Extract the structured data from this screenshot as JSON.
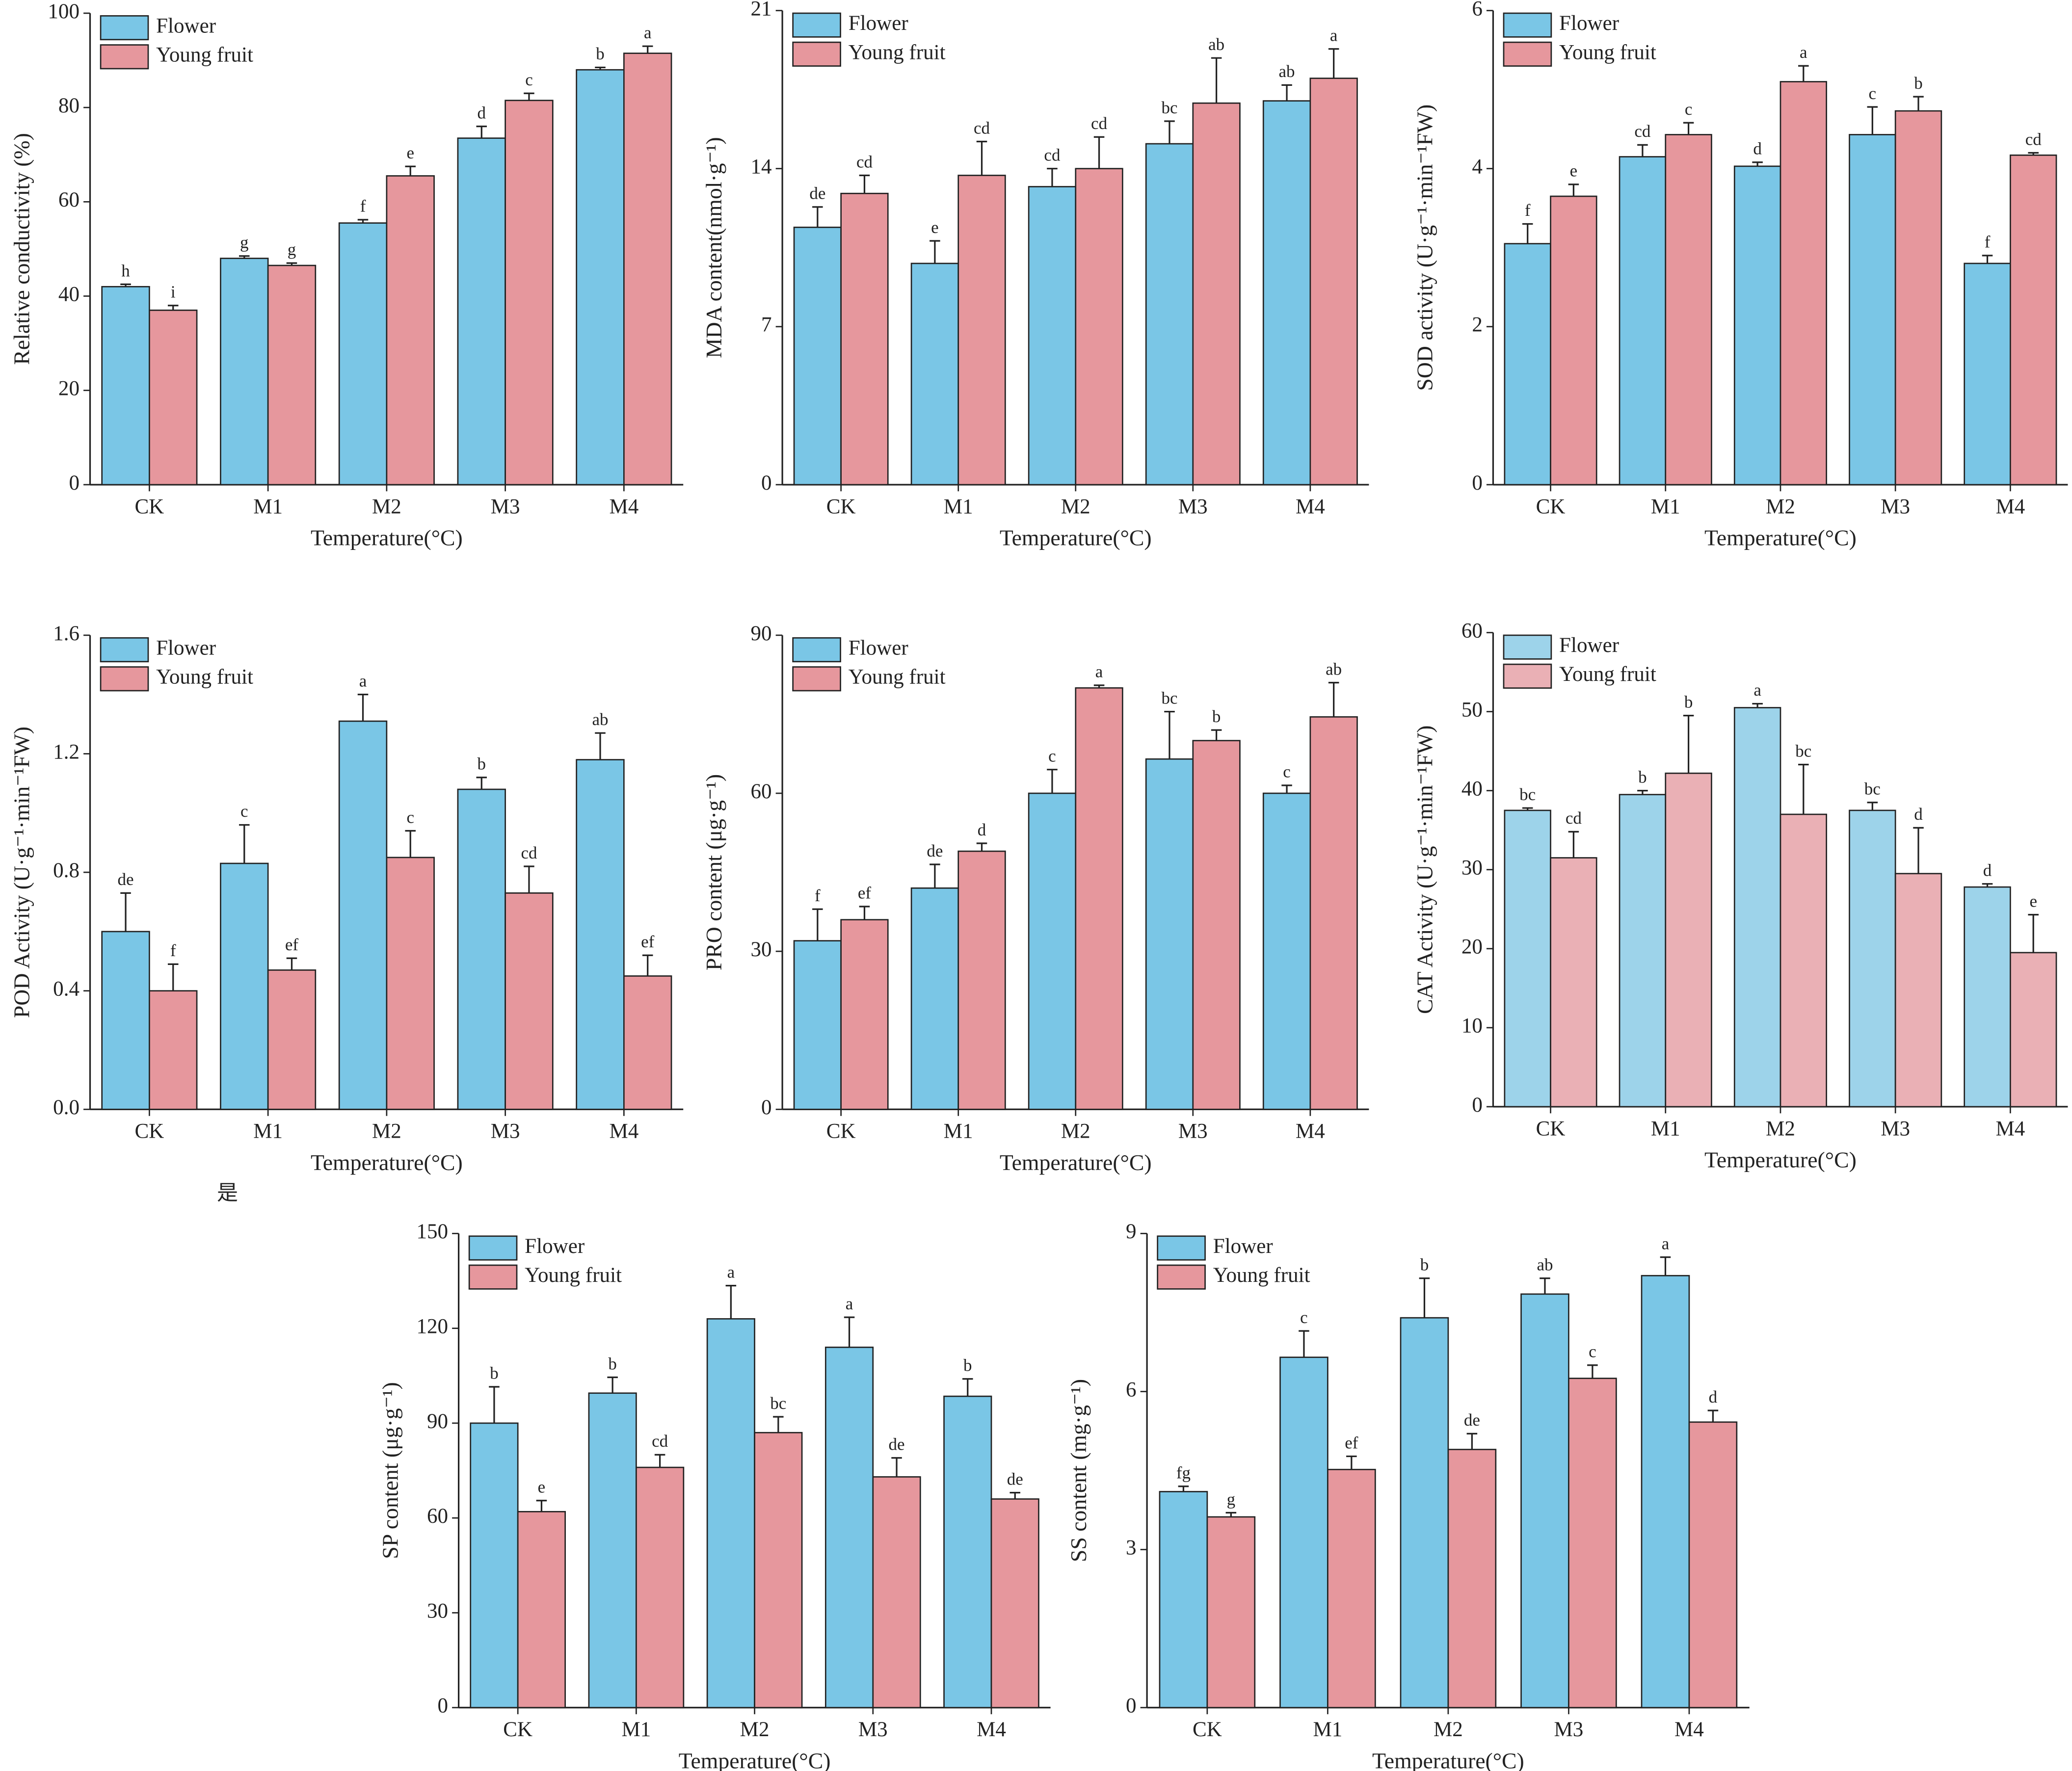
{
  "chart_data": [
    {
      "type": "bar",
      "y_label": "Relative conductivity (%)",
      "x_label": "Temperature(°C)",
      "categories": [
        "CK",
        "M1",
        "M2",
        "M3",
        "M4"
      ],
      "ylim": [
        0,
        100
      ],
      "yticks": [
        0,
        20,
        40,
        60,
        80,
        100
      ],
      "series": [
        {
          "name": "Flower",
          "color": "#7ac6e6",
          "values": [
            42,
            48,
            55.5,
            73.5,
            88
          ],
          "errors": [
            0.5,
            0.5,
            0.7,
            2.5,
            0.5
          ],
          "letters": [
            "h",
            "g",
            "f",
            "d",
            "b"
          ]
        },
        {
          "name": "Young fruit",
          "color": "#e6979d",
          "values": [
            37,
            46.5,
            65.5,
            81.5,
            91.5
          ],
          "errors": [
            1,
            0.5,
            2,
            1.5,
            1.5
          ],
          "letters": [
            "i",
            "g",
            "e",
            "c",
            "a"
          ]
        }
      ]
    },
    {
      "type": "bar",
      "y_label": "MDA content(nmol·g⁻¹)",
      "x_label": "Temperature(°C)",
      "categories": [
        "CK",
        "M1",
        "M2",
        "M3",
        "M4"
      ],
      "ylim": [
        0,
        21
      ],
      "yticks": [
        0,
        7,
        14,
        21
      ],
      "series": [
        {
          "name": "Flower",
          "color": "#7ac6e6",
          "values": [
            11.4,
            9.8,
            13.2,
            15.1,
            17.0
          ],
          "errors": [
            0.9,
            1.0,
            0.8,
            1.0,
            0.7
          ],
          "letters": [
            "de",
            "e",
            "cd",
            "bc",
            "ab"
          ]
        },
        {
          "name": "Young fruit",
          "color": "#e6979d",
          "values": [
            12.9,
            13.7,
            14.0,
            16.9,
            18.0
          ],
          "errors": [
            0.8,
            1.5,
            1.4,
            2.0,
            1.3
          ],
          "letters": [
            "cd",
            "cd",
            "cd",
            "ab",
            "a"
          ]
        }
      ]
    },
    {
      "type": "bar",
      "y_label": "SOD activity (U·g⁻¹·min⁻¹FW)",
      "x_label": "Temperature(°C)",
      "categories": [
        "CK",
        "M1",
        "M2",
        "M3",
        "M4"
      ],
      "ylim": [
        0,
        6
      ],
      "yticks": [
        0,
        2,
        4,
        6
      ],
      "series": [
        {
          "name": "Flower",
          "color": "#7ac6e6",
          "values": [
            3.05,
            4.15,
            4.03,
            4.43,
            2.8
          ],
          "errors": [
            0.25,
            0.15,
            0.05,
            0.35,
            0.1
          ],
          "letters": [
            "f",
            "cd",
            "d",
            "c",
            "f"
          ]
        },
        {
          "name": "Young fruit",
          "color": "#e6979d",
          "values": [
            3.65,
            4.43,
            5.1,
            4.73,
            4.17
          ],
          "errors": [
            0.15,
            0.15,
            0.2,
            0.18,
            0.03
          ],
          "letters": [
            "e",
            "c",
            "a",
            "b",
            "cd"
          ]
        }
      ]
    },
    {
      "type": "bar",
      "y_label": "POD  Activity (U·g⁻¹·min⁻¹FW)",
      "x_label": "Temperature(°C)",
      "categories": [
        "CK",
        "M1",
        "M2",
        "M3",
        "M4"
      ],
      "ylim": [
        0,
        1.6
      ],
      "yticks": [
        {
          "value": 0,
          "label": "0.0"
        },
        0.4,
        0.8,
        1.2,
        1.6
      ],
      "series": [
        {
          "name": "Flower",
          "color": "#7ac6e6",
          "values": [
            0.6,
            0.83,
            1.31,
            1.08,
            1.18
          ],
          "errors": [
            0.13,
            0.13,
            0.09,
            0.04,
            0.09
          ],
          "letters": [
            "de",
            "c",
            "a",
            "b",
            "ab"
          ]
        },
        {
          "name": "Young fruit",
          "color": "#e6979d",
          "values": [
            0.4,
            0.47,
            0.85,
            0.73,
            0.45
          ],
          "errors": [
            0.09,
            0.04,
            0.09,
            0.09,
            0.07
          ],
          "letters": [
            "f",
            "ef",
            "c",
            "cd",
            "ef"
          ]
        }
      ]
    },
    {
      "type": "bar",
      "y_label": "PRO content (μg·g⁻¹)",
      "x_label": "Temperature(°C)",
      "categories": [
        "CK",
        "M1",
        "M2",
        "M3",
        "M4"
      ],
      "ylim": [
        0,
        90
      ],
      "yticks": [
        0,
        30,
        60,
        90
      ],
      "series": [
        {
          "name": "Flower",
          "color": "#7ac6e6",
          "values": [
            32,
            42,
            60,
            66.5,
            60
          ],
          "errors": [
            6,
            4.5,
            4.5,
            9,
            1.5
          ],
          "letters": [
            "f",
            "de",
            "c",
            "bc",
            "c"
          ]
        },
        {
          "name": "Young fruit",
          "color": "#e6979d",
          "values": [
            36,
            49,
            80,
            70,
            74.5
          ],
          "errors": [
            2.5,
            1.5,
            0.5,
            2,
            6.5
          ],
          "letters": [
            "ef",
            "d",
            "a",
            "b",
            "ab"
          ]
        }
      ]
    },
    {
      "type": "bar",
      "y_label": "CAT Activity (U·g⁻¹·min⁻¹FW)",
      "x_label": "Temperature(°C)",
      "categories": [
        "CK",
        "M1",
        "M2",
        "M3",
        "M4"
      ],
      "ylim": [
        0,
        60
      ],
      "yticks": [
        0,
        10,
        20,
        30,
        40,
        50,
        60
      ],
      "series": [
        {
          "name": "Flower",
          "color": "#9dd3ea",
          "values": [
            37.5,
            39.5,
            50.5,
            37.5,
            27.8
          ],
          "errors": [
            0.3,
            0.5,
            0.5,
            1,
            0.4
          ],
          "letters": [
            "bc",
            "b",
            "a",
            "bc",
            "d"
          ]
        },
        {
          "name": "Young fruit",
          "color": "#eab0b5",
          "values": [
            31.5,
            42.2,
            37,
            29.5,
            19.5
          ],
          "errors": [
            3.3,
            7.3,
            6.3,
            5.8,
            4.8
          ],
          "letters": [
            "cd",
            "b",
            "bc",
            "d",
            "e"
          ]
        }
      ]
    },
    {
      "type": "bar",
      "y_label": "SP content (μg·g⁻¹)",
      "x_label": "Temperature(°C)",
      "categories": [
        "CK",
        "M1",
        "M2",
        "M3",
        "M4"
      ],
      "ylim": [
        0,
        150
      ],
      "yticks": [
        0,
        30,
        60,
        90,
        120,
        150
      ],
      "series": [
        {
          "name": "Flower",
          "color": "#7ac6e6",
          "values": [
            90,
            99.5,
            123,
            114,
            98.5
          ],
          "errors": [
            11.5,
            5,
            10.5,
            9.5,
            5.5
          ],
          "letters": [
            "b",
            "b",
            "a",
            "a",
            "b"
          ]
        },
        {
          "name": "Young fruit",
          "color": "#e6979d",
          "values": [
            62,
            76,
            87,
            73,
            66
          ],
          "errors": [
            3.5,
            4,
            5,
            6,
            2
          ],
          "letters": [
            "e",
            "cd",
            "bc",
            "de",
            "de"
          ]
        }
      ]
    },
    {
      "type": "bar",
      "y_label": "SS content (mg·g⁻¹)",
      "x_label": "Temperature(°C)",
      "categories": [
        "CK",
        "M1",
        "M2",
        "M3",
        "M4"
      ],
      "ylim": [
        0,
        9
      ],
      "yticks": [
        0,
        3,
        6,
        9
      ],
      "series": [
        {
          "name": "Flower",
          "color": "#7ac6e6",
          "values": [
            4.1,
            6.65,
            7.4,
            7.85,
            8.2
          ],
          "errors": [
            0.1,
            0.5,
            0.75,
            0.3,
            0.35
          ],
          "letters": [
            "fg",
            "c",
            "b",
            "ab",
            "a"
          ]
        },
        {
          "name": "Young fruit",
          "color": "#e6979d",
          "values": [
            3.62,
            4.52,
            4.9,
            6.25,
            5.42
          ],
          "errors": [
            0.08,
            0.25,
            0.3,
            0.25,
            0.22
          ],
          "letters": [
            "g",
            "ef",
            "de",
            "c",
            "d"
          ]
        }
      ]
    }
  ],
  "annotation": "是"
}
